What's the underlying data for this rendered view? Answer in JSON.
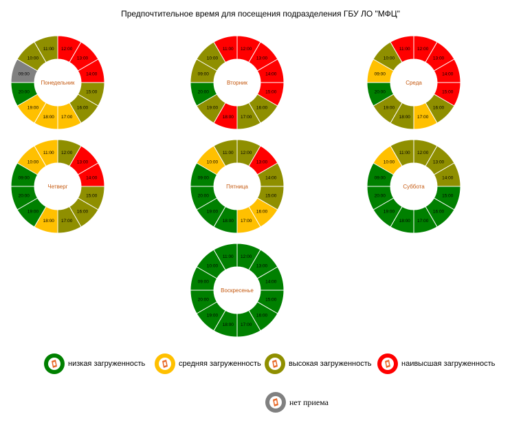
{
  "title": "Предпочтительное время для посещения подразделения ГБУ ЛО \"МФЦ\"",
  "colors": {
    "low": "#008000",
    "medium": "#FFC000",
    "high": "#8F8F00",
    "highest": "#FF0000",
    "none": "#808080",
    "label": "#C55A11"
  },
  "chart_data": [
    {
      "type": "pie",
      "title": "Понедельник",
      "categories": [
        "12:00",
        "13:00",
        "14:00",
        "15:00",
        "16:00",
        "17:00",
        "18:00",
        "19:00",
        "20:00",
        "09:00",
        "10:00",
        "11:00"
      ],
      "values": [
        1,
        1,
        1,
        1,
        1,
        1,
        1,
        1,
        1,
        1,
        1,
        1
      ],
      "levels": [
        "highest",
        "highest",
        "highest",
        "high",
        "high",
        "medium",
        "medium",
        "medium",
        "low",
        "none",
        "high",
        "high"
      ]
    },
    {
      "type": "pie",
      "title": "Вторник",
      "categories": [
        "12:00",
        "13:00",
        "14:00",
        "15:00",
        "16:00",
        "17:00",
        "18:00",
        "19:00",
        "20:00",
        "09:00",
        "10:00",
        "11:00"
      ],
      "values": [
        1,
        1,
        1,
        1,
        1,
        1,
        1,
        1,
        1,
        1,
        1,
        1
      ],
      "levels": [
        "highest",
        "highest",
        "highest",
        "highest",
        "high",
        "high",
        "highest",
        "high",
        "low",
        "high",
        "high",
        "highest"
      ]
    },
    {
      "type": "pie",
      "title": "Среда",
      "categories": [
        "12:00",
        "13:00",
        "14:00",
        "15:00",
        "16:00",
        "17:00",
        "18:00",
        "19:00",
        "20:00",
        "09:00",
        "10:00",
        "11:00"
      ],
      "values": [
        1,
        1,
        1,
        1,
        1,
        1,
        1,
        1,
        1,
        1,
        1,
        1
      ],
      "levels": [
        "highest",
        "highest",
        "highest",
        "highest",
        "high",
        "medium",
        "high",
        "high",
        "low",
        "medium",
        "high",
        "highest"
      ]
    },
    {
      "type": "pie",
      "title": "Четверг",
      "categories": [
        "12:00",
        "13:00",
        "14:00",
        "15:00",
        "16:00",
        "17:00",
        "18:00",
        "19:00",
        "20:00",
        "09:00",
        "10:00",
        "11:00"
      ],
      "values": [
        1,
        1,
        1,
        1,
        1,
        1,
        1,
        1,
        1,
        1,
        1,
        1
      ],
      "levels": [
        "high",
        "highest",
        "highest",
        "high",
        "high",
        "high",
        "medium",
        "low",
        "low",
        "low",
        "medium",
        "medium"
      ]
    },
    {
      "type": "pie",
      "title": "Пятница",
      "categories": [
        "12:00",
        "13:00",
        "14:00",
        "15:00",
        "16:00",
        "17:00",
        "18:00",
        "19:00",
        "20:00",
        "09:00",
        "10:00",
        "11:00"
      ],
      "values": [
        1,
        1,
        1,
        1,
        1,
        1,
        1,
        1,
        1,
        1,
        1,
        1
      ],
      "levels": [
        "high",
        "highest",
        "high",
        "high",
        "medium",
        "medium",
        "low",
        "low",
        "low",
        "low",
        "medium",
        "high"
      ]
    },
    {
      "type": "pie",
      "title": "Суббота",
      "categories": [
        "12:00",
        "13:00",
        "14:00",
        "15:00",
        "16:00",
        "17:00",
        "18:00",
        "19:00",
        "20:00",
        "09:00",
        "10:00",
        "11:00"
      ],
      "values": [
        1,
        1,
        1,
        1,
        1,
        1,
        1,
        1,
        1,
        1,
        1,
        1
      ],
      "levels": [
        "high",
        "high",
        "high",
        "low",
        "low",
        "low",
        "low",
        "low",
        "low",
        "low",
        "medium",
        "high"
      ]
    },
    {
      "type": "pie",
      "title": "Воскресенье",
      "categories": [
        "12:00",
        "13:00",
        "14:00",
        "15:00",
        "16:00",
        "17:00",
        "18:00",
        "19:00",
        "20:00",
        "09:00",
        "10:00",
        "11:00"
      ],
      "values": [
        1,
        1,
        1,
        1,
        1,
        1,
        1,
        1,
        1,
        1,
        1,
        1
      ],
      "levels": [
        "low",
        "low",
        "low",
        "low",
        "low",
        "low",
        "low",
        "low",
        "low",
        "low",
        "low",
        "low"
      ]
    }
  ],
  "legend": [
    {
      "key": "low",
      "label": "низкая загруженность"
    },
    {
      "key": "medium",
      "label": "средняя загруженность"
    },
    {
      "key": "high",
      "label": "высокая загруженность"
    },
    {
      "key": "highest",
      "label": "наивысшая загруженность"
    },
    {
      "key": "none",
      "label": "нет приема"
    }
  ]
}
